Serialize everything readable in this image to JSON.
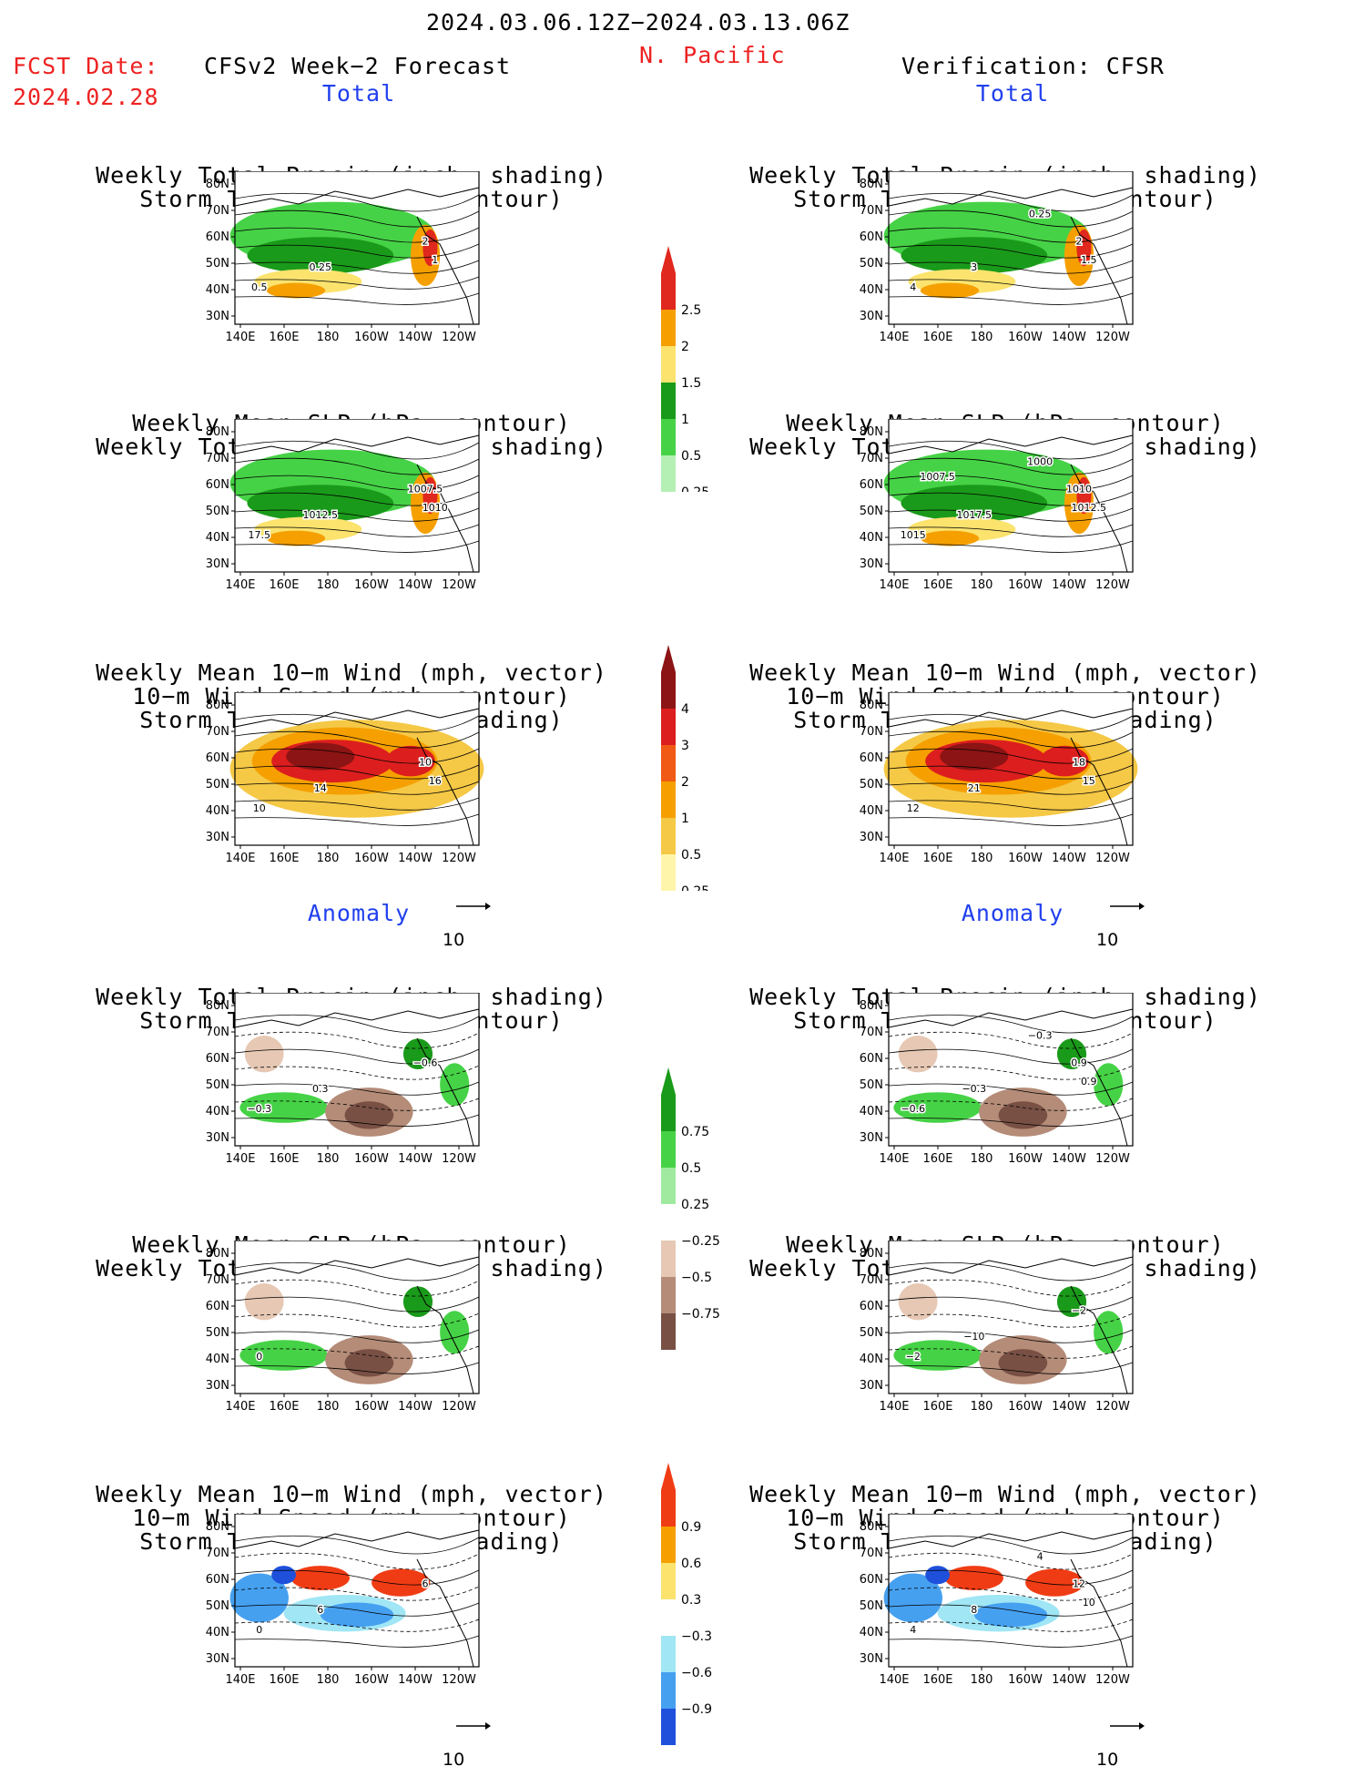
{
  "header": {
    "period": "2024.03.06.12Z−2024.03.13.06Z",
    "region": "N. Pacific",
    "fcst_label": "FCST Date:",
    "fcst_date": "2024.02.28",
    "left_title": "CFSv2 Week−2 Forecast",
    "right_title": "Verification: CFSR"
  },
  "sections": {
    "total": "Total",
    "anomaly": "Anomaly"
  },
  "panel_titles": {
    "precip_storm": [
      "Weekly Total Precip (inch, shading)",
      "Storm Track Density (contour)"
    ],
    "slp_precip": [
      "Weekly Mean SLP (hPa, contour)",
      "Weekly Total Precip (inch, shading)"
    ],
    "wind_storm": [
      "Weekly Mean 10−m Wind (mph, vector)",
      "10−m Wind Speed (mph, contour)",
      "Storm Track Density (shading)"
    ]
  },
  "axes": {
    "lat_labels": [
      "80N",
      "70N",
      "60N",
      "50N",
      "40N",
      "30N"
    ],
    "lon_labels": [
      "140E",
      "160E",
      "180",
      "160W",
      "140W",
      "120W"
    ]
  },
  "vector_ref": "10",
  "colorbars": {
    "precip_total": {
      "labels": [
        "2.5",
        "2",
        "1.5",
        "1",
        "0.5",
        "0.25"
      ],
      "colors": [
        "#e0281e",
        "#f5a000",
        "#fbe36e",
        "#1a9a1a",
        "#46d246",
        "#b4f0b4"
      ]
    },
    "storm_total": {
      "labels": [
        "4",
        "3",
        "2",
        "1",
        "0.5",
        "0.25"
      ],
      "colors": [
        "#8c1414",
        "#dc1e1e",
        "#f05a14",
        "#f5a000",
        "#f5c846",
        "#fff5aa"
      ]
    },
    "precip_anom": {
      "labels": [
        "0.75",
        "0.5",
        "0.25",
        "−0.25",
        "−0.5",
        "−0.75"
      ],
      "colors": [
        "#1a9a1a",
        "#46d246",
        "#a0eaa0",
        "#ffffff",
        "#e6c8b4",
        "#b48c78",
        "#785044"
      ]
    },
    "storm_anom": {
      "labels": [
        "0.9",
        "0.6",
        "0.3",
        "−0.3",
        "−0.6",
        "−0.9"
      ],
      "colors": [
        "#f03c14",
        "#f5a000",
        "#fbe36e",
        "#ffffff",
        "#a0e6f5",
        "#46a0f0",
        "#1e50dc"
      ]
    }
  },
  "contour_labels": {
    "L1": [
      "0.5",
      "0.25",
      "2",
      "1"
    ],
    "R1": [
      "4",
      "3",
      "2",
      "1.5",
      "0.25"
    ],
    "L2": [
      "17.5",
      "1012.5",
      "1007.5",
      "1010"
    ],
    "R2": [
      "1015",
      "1017.5",
      "1010",
      "1012.5",
      "1000",
      "1007.5"
    ],
    "L3": [
      "10",
      "14",
      "10",
      "16"
    ],
    "R3": [
      "12",
      "21",
      "18",
      "15"
    ],
    "L4": [
      "−0.3",
      "0.3",
      "−0.6"
    ],
    "R4": [
      "−0.6",
      "−0.3",
      "0.9",
      "0.9",
      "−0.3"
    ],
    "L5": [
      "0"
    ],
    "R5": [
      "−2",
      "−10",
      "−2"
    ],
    "L6": [
      "0",
      "6",
      "6"
    ],
    "R6": [
      "4",
      "8",
      "12",
      "10",
      "4"
    ]
  }
}
